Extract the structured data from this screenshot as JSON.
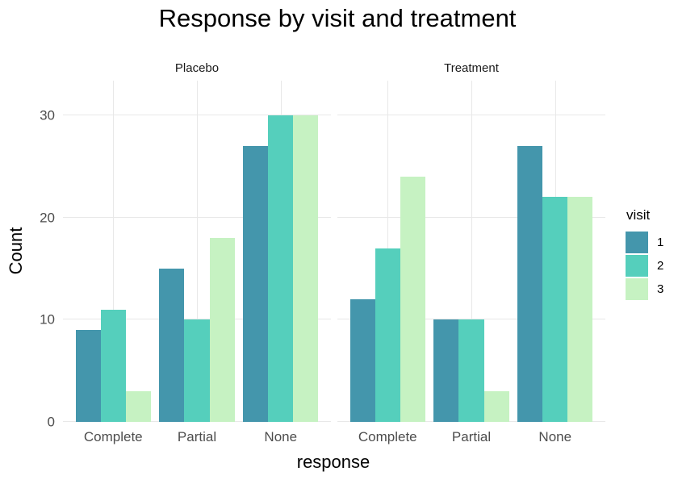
{
  "title": "Response by visit and treatment",
  "chart_data": {
    "type": "bar",
    "title": "Response by visit and treatment",
    "xlabel": "response",
    "ylabel": "Count",
    "ylim": [
      0,
      33.4
    ],
    "yticks": [
      0,
      10,
      20,
      30
    ],
    "categories": [
      "Complete",
      "Partial",
      "None"
    ],
    "grid": "major horizontal and vertical gridlines only, light gray on white",
    "legend_title": "visit",
    "legend_position": "right",
    "facets": [
      {
        "label": "Placebo",
        "series": [
          {
            "name": "1",
            "color": "#4496ac",
            "values": [
              9,
              15,
              27
            ]
          },
          {
            "name": "2",
            "color": "#55cfbc",
            "values": [
              11,
              10,
              30
            ]
          },
          {
            "name": "3",
            "color": "#c6f2c2",
            "values": [
              3,
              18,
              30
            ]
          }
        ]
      },
      {
        "label": "Treatment",
        "series": [
          {
            "name": "1",
            "color": "#4496ac",
            "values": [
              12,
              10,
              27
            ]
          },
          {
            "name": "2",
            "color": "#55cfbc",
            "values": [
              17,
              10,
              22
            ]
          },
          {
            "name": "3",
            "color": "#c6f2c2",
            "values": [
              24,
              3,
              22
            ]
          }
        ]
      }
    ]
  },
  "legend": {
    "title": "visit",
    "entries": [
      {
        "label": "1",
        "color": "#4496ac"
      },
      {
        "label": "2",
        "color": "#55cfbc"
      },
      {
        "label": "3",
        "color": "#c6f2c2"
      }
    ]
  },
  "colors": {
    "visit_1": "#4496ac",
    "visit_2": "#55cfbc",
    "visit_3": "#c6f2c2",
    "gridline": "#e8e8e8",
    "tick_label": "#4d4d4d",
    "strip_label": "#1a1a1a",
    "text": "#000000",
    "background": "#ffffff"
  }
}
